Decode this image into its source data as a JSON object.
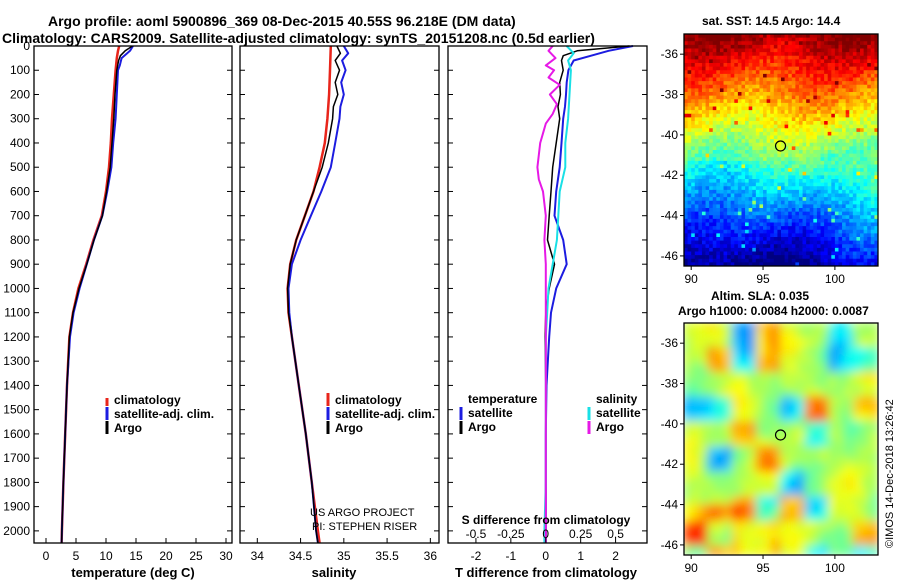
{
  "header": {
    "title_line1": "Argo profile: aoml 5900896_369 08-Dec-2015 40.55S 96.218E (DM data)",
    "title_line2": "Climatology: CARS2009. Satellite-adjusted climatology: synTS_20151208.nc (0.5d earlier)"
  },
  "colors": {
    "climatology": "#e8251b",
    "satellite": "#1c1ce0",
    "argo": "#000000",
    "satellite_salinity": "#19e0e6",
    "argo_salinity": "#e619e6"
  },
  "chart_data": [
    {
      "id": "temperature",
      "type": "line",
      "xlabel": "temperature (deg C)",
      "ylabel": "",
      "xlim": [
        -2,
        31
      ],
      "ylim": [
        2050,
        0
      ],
      "x_ticks": [
        "0",
        "5",
        "10",
        "15",
        "20",
        "25",
        "30"
      ],
      "x_tick_values": [
        0,
        5,
        10,
        15,
        20,
        25,
        30
      ],
      "y_ticks": [
        "0",
        "100",
        "200",
        "300",
        "400",
        "500",
        "600",
        "700",
        "800",
        "900",
        "1000",
        "1100",
        "1200",
        "1300",
        "1400",
        "1500",
        "1600",
        "1700",
        "1800",
        "1900",
        "2000"
      ],
      "y_tick_values": [
        0,
        100,
        200,
        300,
        400,
        500,
        600,
        700,
        800,
        900,
        1000,
        1100,
        1200,
        1300,
        1400,
        1500,
        1600,
        1700,
        1800,
        1900,
        2000
      ],
      "legend": [
        "climatology",
        "satellite-adj. clim.",
        "Argo"
      ],
      "series": [
        {
          "name": "climatology",
          "color_key": "climatology",
          "width": 2.5,
          "depth": [
            0,
            20,
            50,
            100,
            200,
            300,
            400,
            500,
            600,
            700,
            800,
            900,
            1000,
            1100,
            1200,
            1400,
            1600,
            1800,
            2000,
            2050
          ],
          "values": [
            12.2,
            12.0,
            11.8,
            11.6,
            11.3,
            11.0,
            10.8,
            10.5,
            10.0,
            9.3,
            7.9,
            6.7,
            5.4,
            4.5,
            3.9,
            3.5,
            3.2,
            2.9,
            2.65,
            2.6
          ]
        },
        {
          "name": "satellite-adj. clim.",
          "color_key": "satellite",
          "width": 2,
          "depth": [
            0,
            20,
            50,
            80,
            100,
            200,
            300,
            400,
            500,
            600,
            700,
            800,
            900,
            1000,
            1100,
            1200,
            1400,
            1600,
            1800,
            2000,
            2050
          ],
          "values": [
            14.5,
            14.0,
            12.6,
            12.3,
            12.0,
            11.8,
            11.6,
            11.2,
            10.9,
            10.2,
            9.4,
            8.0,
            6.8,
            5.6,
            4.6,
            4.0,
            3.5,
            3.2,
            2.9,
            2.65,
            2.6
          ]
        },
        {
          "name": "Argo",
          "color_key": "argo",
          "width": 1.5,
          "depth": [
            0,
            20,
            40,
            60,
            100,
            200,
            300,
            400,
            500,
            600,
            700,
            800,
            900,
            1000,
            1100,
            1200,
            1400,
            1600,
            1800,
            2000,
            2050
          ],
          "values": [
            14.4,
            13.2,
            12.4,
            12.1,
            11.8,
            11.5,
            11.3,
            11.0,
            10.7,
            10.1,
            9.4,
            8.0,
            6.8,
            5.5,
            4.5,
            3.9,
            3.5,
            3.2,
            2.9,
            2.65,
            2.6
          ]
        }
      ]
    },
    {
      "id": "salinity",
      "type": "line",
      "xlabel": "salinity",
      "xlim": [
        33.8,
        36.1
      ],
      "ylim": [
        2050,
        0
      ],
      "x_ticks": [
        "34",
        "34.5",
        "35",
        "35.5",
        "36"
      ],
      "x_tick_values": [
        34,
        34.5,
        35,
        35.5,
        36
      ],
      "legend": [
        "climatology",
        "satellite-adj. clim.",
        "Argo"
      ],
      "series": [
        {
          "name": "climatology",
          "color_key": "climatology",
          "width": 2.5,
          "depth": [
            0,
            100,
            200,
            300,
            400,
            500,
            600,
            700,
            800,
            900,
            1000,
            1100,
            1200,
            1400,
            1600,
            1800,
            2000,
            2050
          ],
          "values": [
            34.85,
            34.84,
            34.83,
            34.81,
            34.78,
            34.72,
            34.65,
            34.55,
            34.45,
            34.38,
            34.35,
            34.36,
            34.4,
            34.48,
            34.56,
            34.63,
            34.7,
            34.72
          ]
        },
        {
          "name": "satellite-adj. clim.",
          "color_key": "satellite",
          "width": 2,
          "depth": [
            0,
            30,
            60,
            100,
            150,
            200,
            250,
            300,
            400,
            500,
            600,
            700,
            800,
            900,
            1000,
            1100,
            1200,
            1400,
            1600,
            1800,
            2000,
            2050
          ],
          "values": [
            35.0,
            35.05,
            34.98,
            35.02,
            34.97,
            35.0,
            34.96,
            34.95,
            34.9,
            34.85,
            34.74,
            34.62,
            34.5,
            34.4,
            34.36,
            34.37,
            34.4,
            34.48,
            34.56,
            34.63,
            34.68,
            34.7
          ]
        },
        {
          "name": "Argo",
          "color_key": "argo",
          "width": 1.5,
          "depth": [
            0,
            30,
            60,
            100,
            150,
            200,
            250,
            300,
            400,
            500,
            600,
            700,
            800,
            900,
            1000,
            1100,
            1200,
            1400,
            1600,
            1800,
            2000,
            2050
          ],
          "values": [
            34.92,
            34.96,
            34.9,
            34.95,
            34.9,
            34.93,
            34.88,
            34.87,
            34.82,
            34.75,
            34.65,
            34.55,
            34.45,
            34.38,
            34.35,
            34.36,
            34.4,
            34.48,
            34.56,
            34.63,
            34.68,
            34.7
          ]
        }
      ],
      "annotation_line1": "US ARGO PROJECT",
      "annotation_line2": "PI: STEPHEN RISER"
    },
    {
      "id": "difference",
      "type": "line",
      "xlabel": "T difference from climatology",
      "xlabel_top": "S difference from climatology",
      "xlim": [
        -2.8,
        2.9
      ],
      "ylim": [
        2050,
        0
      ],
      "x_ticks": [
        "-2",
        "-1",
        "0",
        "1",
        "2"
      ],
      "x_tick_values": [
        -2,
        -1,
        0,
        1,
        2
      ],
      "s_ticks": [
        "-0.5",
        "-0.25",
        "0",
        "0.25",
        "0.5"
      ],
      "s_tick_values": [
        -0.5,
        -0.25,
        0,
        0.25,
        0.5
      ],
      "legend_temperature_title": "temperature",
      "legend_salinity_title": "salinity",
      "legend_temperature": [
        "satellite",
        "Argo"
      ],
      "legend_salinity": [
        "satellite",
        "Argo"
      ],
      "series": [
        {
          "name": "T satellite",
          "color_key": "satellite",
          "width": 2,
          "depth": [
            0,
            20,
            40,
            60,
            100,
            150,
            200,
            250,
            300,
            400,
            500,
            600,
            700,
            800,
            900,
            1000,
            1100,
            1200,
            1400,
            1600,
            1800,
            2000,
            2050
          ],
          "values": [
            2.5,
            1.8,
            1.3,
            0.8,
            0.65,
            0.6,
            0.58,
            0.55,
            0.5,
            0.45,
            0.4,
            0.3,
            0.25,
            0.5,
            0.6,
            0.3,
            0.15,
            0.1,
            0.02,
            0.0,
            0.0,
            0.0,
            0.0
          ]
        },
        {
          "name": "T Argo",
          "color_key": "argo",
          "width": 1.5,
          "depth": [
            0,
            20,
            40,
            60,
            100,
            150,
            200,
            250,
            300,
            400,
            500,
            600,
            700,
            800,
            900,
            1000,
            1100,
            1200,
            1400,
            1600,
            1800,
            2000,
            2050
          ],
          "values": [
            2.4,
            0.9,
            0.5,
            0.45,
            0.5,
            0.4,
            0.42,
            0.35,
            0.4,
            0.3,
            0.2,
            0.15,
            0.1,
            0.05,
            0.25,
            0.1,
            0.0,
            -0.02,
            0.0,
            0.0,
            0.0,
            0.0,
            0.0
          ]
        },
        {
          "name": "S satellite",
          "color_key": "satellite_salinity",
          "width": 2,
          "depth": [
            0,
            30,
            60,
            100,
            200,
            300,
            400,
            500,
            600,
            700,
            800,
            900,
            1000,
            1100,
            1200,
            1400,
            1600,
            1800,
            2000,
            2050
          ],
          "values": [
            0.15,
            0.2,
            0.16,
            0.18,
            0.17,
            0.16,
            0.14,
            0.14,
            0.1,
            0.09,
            0.08,
            0.05,
            0.02,
            0.01,
            0.0,
            0.0,
            0.0,
            0.0,
            -0.01,
            -0.01
          ]
        },
        {
          "name": "S Argo",
          "color_key": "argo_salinity",
          "width": 2,
          "depth": [
            0,
            20,
            50,
            80,
            100,
            130,
            160,
            200,
            240,
            280,
            320,
            360,
            400,
            450,
            500,
            550,
            600,
            700,
            800,
            900,
            1000,
            1100,
            1200,
            1400,
            1600,
            1800,
            2000,
            2050
          ],
          "values": [
            0.05,
            0.02,
            0.07,
            0.0,
            0.06,
            0.02,
            0.1,
            0.03,
            0.08,
            0.05,
            0.0,
            -0.02,
            -0.04,
            -0.05,
            -0.06,
            -0.05,
            -0.02,
            0.0,
            -0.01,
            0.0,
            0.0,
            0.0,
            0.0,
            0.0,
            0.0,
            0.0,
            0.0,
            0.0
          ]
        }
      ]
    },
    {
      "id": "sst_map",
      "type": "heatmap",
      "title": "sat. SST: 14.5 Argo: 14.4",
      "xlim": [
        89.5,
        103
      ],
      "ylim": [
        -46.5,
        -35
      ],
      "x_ticks": [
        "90",
        "95",
        "100"
      ],
      "x_tick_values": [
        90,
        95,
        100
      ],
      "y_ticks": [
        "-36",
        "-38",
        "-40",
        "-42",
        "-44",
        "-46"
      ],
      "y_tick_values": [
        -36,
        -38,
        -40,
        -42,
        -44,
        -46
      ],
      "marker": {
        "lon": 96.218,
        "lat": -40.55
      }
    },
    {
      "id": "sla_map",
      "type": "heatmap",
      "title": "Altim. SLA: 0.035",
      "subtitle": "Argo h1000: 0.0084 h2000: 0.0087",
      "xlim": [
        89.5,
        103
      ],
      "ylim": [
        -46.5,
        -35
      ],
      "x_ticks": [
        "90",
        "95",
        "100"
      ],
      "x_tick_values": [
        90,
        95,
        100
      ],
      "y_ticks": [
        "-36",
        "-38",
        "-40",
        "-42",
        "-44",
        "-46"
      ],
      "y_tick_values": [
        -36,
        -38,
        -40,
        -42,
        -44,
        -46
      ],
      "marker": {
        "lon": 96.218,
        "lat": -40.55
      }
    }
  ],
  "credit": "©IMOS 14-Dec-2018 13:26:42"
}
